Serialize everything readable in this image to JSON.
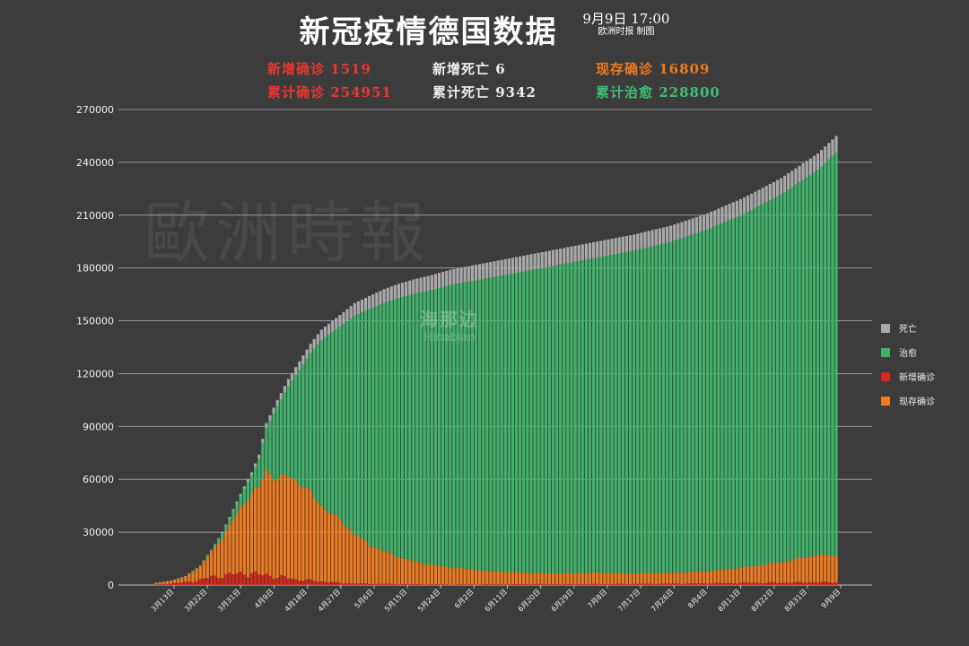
{
  "header": {
    "title": "新冠疫情德国数据",
    "date": "9月9日  17:00",
    "credit": "欧洲时报 制图"
  },
  "stats": {
    "new_confirmed": "新增确诊 1519",
    "new_deaths": "新增死亡 6",
    "active": "现存确诊 16809",
    "total_confirmed": "累计确诊 254951",
    "total_deaths": "累计死亡 9342",
    "total_recovered": "累计治愈 228800"
  },
  "watermark": {
    "text": "歐洲時報"
  },
  "logo": {
    "cn": "海那边",
    "en": "Hinabian"
  },
  "colors": {
    "background": "#3c3c3c",
    "deaths": "#a9a9a9",
    "recovered": "#3fb36b",
    "new_confirmed": "#d9261c",
    "active": "#f07a1e"
  },
  "chart_data": {
    "type": "bar",
    "stacked": true,
    "ylim": [
      0,
      270000
    ],
    "yticks": [
      "0",
      "30000",
      "60000",
      "90000",
      "120000",
      "150000",
      "180000",
      "210000",
      "240000",
      "270000"
    ],
    "xtick_labels": [
      "3月13日",
      "3月22日",
      "3月31日",
      "4月9日",
      "4月18日",
      "4月27日",
      "5月6日",
      "5月15日",
      "5月24日",
      "6月2日",
      "6月11日",
      "6月20日",
      "6月29日",
      "7月8日",
      "7月17日",
      "7月26日",
      "8月4日",
      "8月13日",
      "8月22日",
      "8月31日",
      "9月9日"
    ],
    "legend": [
      "死亡",
      "治愈",
      "新增确诊",
      "现存确诊"
    ],
    "legend_position": "right",
    "grid": true,
    "x_start": "3月9日",
    "x_end": "9月9日",
    "keypoints": {
      "day_offset": [
        0,
        4,
        8,
        12,
        15,
        18,
        21,
        24,
        26,
        28,
        30,
        33,
        36,
        39,
        42,
        45,
        48,
        51,
        54,
        58,
        62,
        66,
        70,
        75,
        80,
        85,
        90,
        95,
        100,
        110,
        120,
        130,
        140,
        150,
        160,
        170,
        180,
        185
      ],
      "total": [
        1200,
        2400,
        5000,
        11000,
        20000,
        30000,
        43000,
        56000,
        64000,
        74000,
        92000,
        105000,
        117000,
        127000,
        137000,
        145000,
        150000,
        155000,
        160000,
        164000,
        168000,
        171000,
        173500,
        176000,
        179000,
        181000,
        183000,
        185000,
        187000,
        191000,
        195000,
        199000,
        204000,
        211000,
        220000,
        231000,
        245000,
        254951
      ],
      "deaths": [
        3,
        10,
        30,
        80,
        200,
        400,
        800,
        1300,
        1700,
        2200,
        2800,
        3400,
        4100,
        4700,
        5300,
        5900,
        6300,
        6700,
        7200,
        7500,
        7800,
        8100,
        8300,
        8500,
        8650,
        8750,
        8850,
        8950,
        9000,
        9050,
        9100,
        9150,
        9180,
        9210,
        9240,
        9270,
        9320,
        9342
      ],
      "active": [
        1150,
        2300,
        4800,
        10500,
        18500,
        27000,
        37000,
        47000,
        52000,
        55000,
        65000,
        60000,
        62000,
        58000,
        52000,
        45000,
        40000,
        35000,
        29000,
        23000,
        19000,
        16000,
        13500,
        11500,
        10000,
        9000,
        8000,
        7500,
        7000,
        6500,
        7000,
        6500,
        7000,
        8000,
        10000,
        13000,
        17000,
        16809
      ],
      "new": [
        200,
        800,
        1500,
        3000,
        4500,
        5500,
        6000,
        7000,
        6500,
        5500,
        6000,
        4500,
        4000,
        3000,
        2500,
        2000,
        1500,
        1000,
        800,
        700,
        600,
        500,
        400,
        350,
        300,
        300,
        350,
        400,
        500,
        400,
        500,
        600,
        700,
        900,
        1200,
        1300,
        1500,
        1519
      ]
    }
  }
}
